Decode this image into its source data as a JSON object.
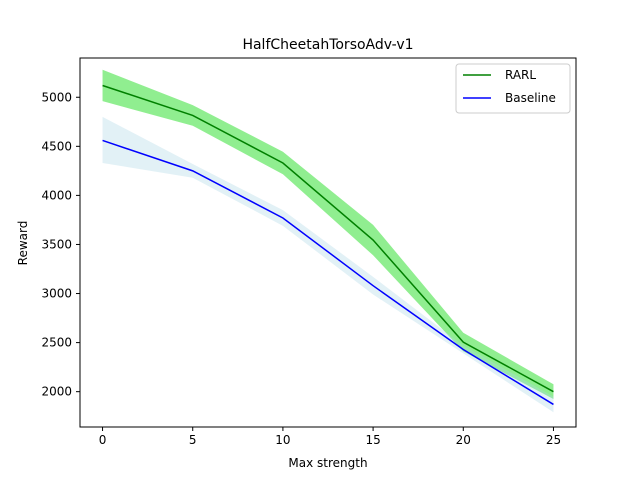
{
  "chart_data": {
    "type": "line",
    "title": "HalfCheetahTorsoAdv-v1",
    "xlabel": "Max strength",
    "ylabel": "Reward",
    "x": [
      0,
      5,
      10,
      15,
      20,
      25
    ],
    "xlim": [
      -1.25,
      26.25
    ],
    "ylim": [
      1640,
      5400
    ],
    "xticks": [
      0,
      5,
      10,
      15,
      20,
      25
    ],
    "yticks": [
      2000,
      2500,
      3000,
      3500,
      4000,
      4500,
      5000
    ],
    "legend_position": "top-right",
    "series": [
      {
        "name": "RARL",
        "color": "#008000",
        "band_color": "#90ee90",
        "values": [
          5120,
          4815,
          4330,
          3545,
          2505,
          2000
        ],
        "upper": [
          5280,
          4920,
          4445,
          3700,
          2600,
          2075
        ],
        "lower": [
          4960,
          4710,
          4215,
          3390,
          2410,
          1925
        ]
      },
      {
        "name": "Baseline",
        "color": "#0000ff",
        "band_color": "#add8e6",
        "values": [
          4560,
          4250,
          3770,
          3080,
          2430,
          1870
        ],
        "upper": [
          4800,
          4320,
          3850,
          3170,
          2470,
          1950
        ],
        "lower": [
          4330,
          4180,
          3690,
          2990,
          2390,
          1790
        ]
      }
    ]
  }
}
